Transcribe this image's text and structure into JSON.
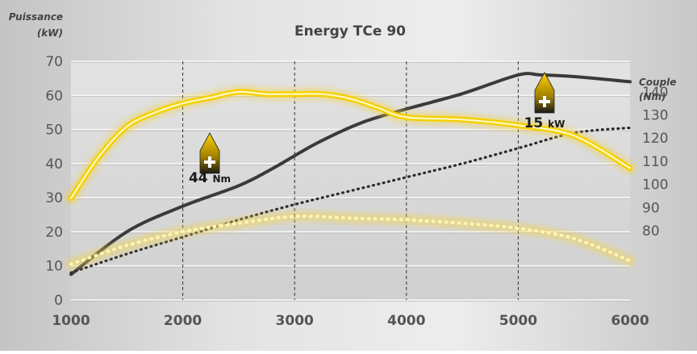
{
  "chart_data": {
    "type": "line",
    "title": "Energy TCe 90",
    "left_axis": {
      "label_line1": "Puissance",
      "label_line2": "(kW)",
      "ylim": [
        0,
        70
      ],
      "ticks": [
        0,
        10,
        20,
        30,
        40,
        50,
        60,
        70
      ]
    },
    "right_axis": {
      "label_line1": "Couple",
      "label_line2": "(Nm)",
      "ylim": [
        50,
        153.2
      ],
      "ticks": [
        80,
        90,
        100,
        110,
        120,
        130,
        140
      ]
    },
    "x_axis": {
      "xlim": [
        1000,
        6000
      ],
      "ticks": [
        1000,
        2000,
        3000,
        4000,
        5000,
        6000
      ]
    },
    "grid": true,
    "series": [
      {
        "axis": "left",
        "style": "solid",
        "color": "#3a3a3a",
        "x": [
          1000,
          1500,
          2000,
          2500,
          2800,
          3200,
          3600,
          4000,
          4500,
          5000,
          5200,
          5500,
          6000
        ],
        "values": [
          7.5,
          20,
          27.5,
          33.5,
          38.5,
          46,
          52,
          56,
          60.5,
          66,
          66,
          65.5,
          64
        ]
      },
      {
        "axis": "left",
        "style": "dotted",
        "color": "#2a2a2a",
        "x": [
          1000,
          1500,
          2000,
          2500,
          3000,
          3500,
          4000,
          4500,
          5000,
          5500,
          6000
        ],
        "values": [
          8,
          13.5,
          18.5,
          23.5,
          28,
          32,
          36,
          40,
          44.5,
          49,
          50.5
        ]
      },
      {
        "axis": "right",
        "style": "solid",
        "color": "#f5d000",
        "x": [
          1000,
          1250,
          1500,
          1750,
          2000,
          2250,
          2500,
          2750,
          3000,
          3250,
          3500,
          3750,
          4000,
          4500,
          5000,
          5500,
          6000
        ],
        "values": [
          94,
          112,
          125,
          131,
          135,
          137.5,
          140,
          139,
          139,
          139,
          137,
          133,
          129,
          128,
          125.5,
          121,
          107
        ]
      },
      {
        "axis": "right",
        "style": "dotted",
        "color": "#f5d000",
        "x": [
          1000,
          1500,
          2000,
          2500,
          3000,
          3500,
          4000,
          4500,
          5000,
          5500,
          6000
        ],
        "values": [
          10.5,
          16,
          20,
          22.5,
          24.5,
          24,
          23.5,
          22.5,
          21,
          18,
          11.5
        ]
      }
    ],
    "annotations": [
      {
        "value": "44",
        "unit": "Nm"
      },
      {
        "value": "15",
        "unit": "kW"
      }
    ]
  },
  "colors": {
    "background_light": "#ececec",
    "background_dark": "#bdbdbd",
    "accent": "#f5d000",
    "plot_bg": "#d7d7d7"
  },
  "icons": {
    "marker": "plus-arrow-icon"
  }
}
